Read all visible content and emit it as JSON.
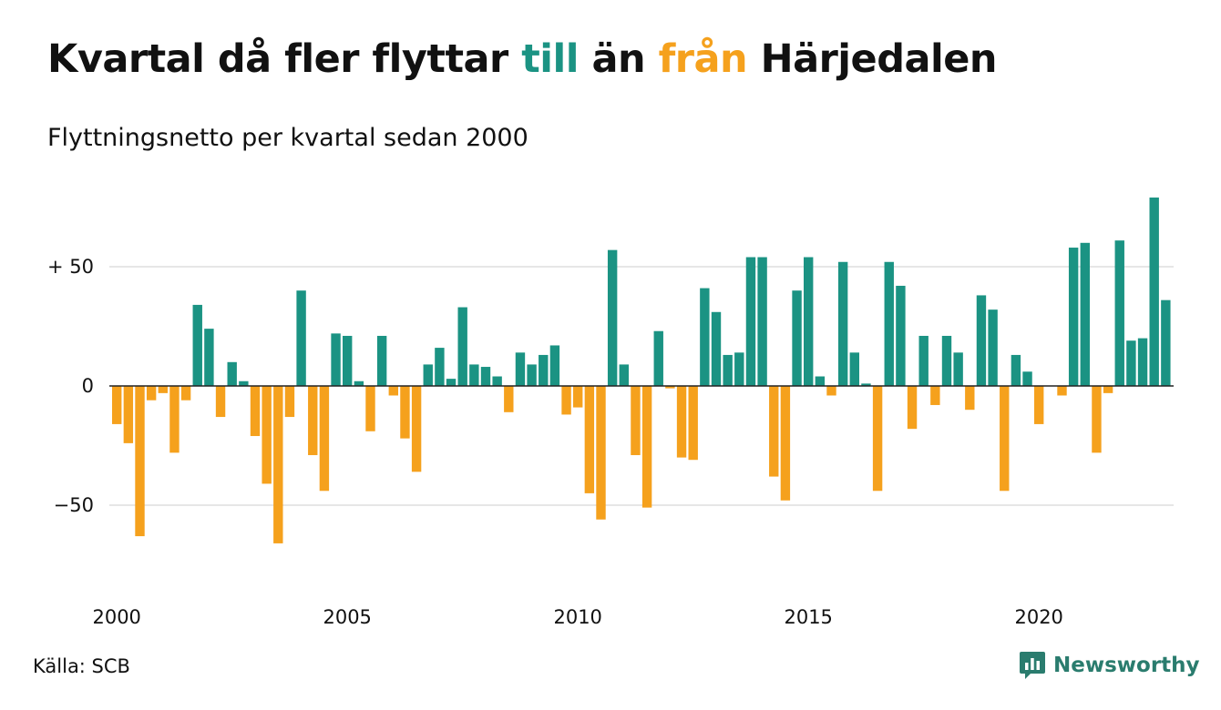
{
  "title": {
    "part1": "Kvartal då fler flyttar ",
    "word_in": "till",
    "part2": " än ",
    "word_out": "från",
    "part3": " Härjedalen"
  },
  "subtitle": "Flyttningsnetto per kvartal sedan 2000",
  "source": "Källa: SCB",
  "brand": {
    "name": "Newsworthy",
    "icon": "newsworthy-logo-icon"
  },
  "colors": {
    "positive": "#1b9383",
    "negative": "#f5a11d",
    "grid": "#dddddd",
    "baseline": "#222222"
  },
  "chart_data": {
    "type": "bar",
    "title": "Kvartal då fler flyttar till än från Härjedalen",
    "subtitle": "Flyttningsnetto per kvartal sedan 2000",
    "xlabel": "",
    "ylabel": "",
    "x_start": {
      "year": 2000,
      "quarter": 1
    },
    "quarters_per_year": 4,
    "x_tick_labels": [
      "2000",
      "2005",
      "2010",
      "2015",
      "2020"
    ],
    "y_ticks": [
      {
        "value": 50,
        "label": "+ 50"
      },
      {
        "value": 0,
        "label": "0"
      },
      {
        "value": -50,
        "label": "−50"
      }
    ],
    "ylim": [
      -85,
      80
    ],
    "grid": true,
    "legend": "none",
    "values": [
      -16,
      -24,
      -63,
      -6,
      -3,
      -28,
      -6,
      34,
      24,
      -13,
      10,
      2,
      -21,
      -41,
      -66,
      -13,
      40,
      -29,
      -44,
      22,
      21,
      2,
      -19,
      21,
      -4,
      -22,
      -36,
      9,
      16,
      3,
      33,
      9,
      8,
      4,
      -11,
      14,
      9,
      13,
      17,
      -12,
      -9,
      -45,
      -56,
      57,
      9,
      -29,
      -51,
      23,
      -1,
      -30,
      -31,
      41,
      31,
      13,
      14,
      54,
      54,
      -38,
      -48,
      40,
      54,
      4,
      -4,
      52,
      14,
      1,
      -44,
      52,
      42,
      -18,
      21,
      -8,
      21,
      14,
      -10,
      38,
      32,
      -44,
      13,
      6,
      -16,
      0,
      -4,
      58,
      60,
      -28,
      -3,
      61,
      19,
      20,
      79,
      36
    ]
  }
}
